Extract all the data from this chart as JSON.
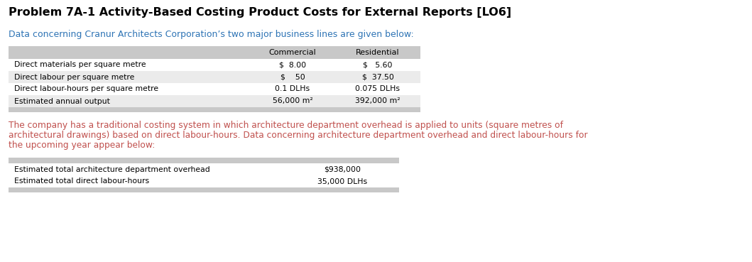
{
  "title": "Problem 7A-1 Activity-Based Costing Product Costs for External Reports [LO6]",
  "subtitle": "Data concerning Cranur Architects Corporation’s two major business lines are given below:",
  "paragraph_lines": [
    "The company has a traditional costing system in which architecture department overhead is applied to units (square metres of",
    "architectural drawings) based on direct labour-hours. Data concerning architecture department overhead and direct labour-hours for",
    "the upcoming year appear below:"
  ],
  "table1_header": [
    "Commercial",
    "Residential"
  ],
  "table1_rows": [
    [
      "Direct materials per square metre",
      "$  8.00",
      "$   5.60"
    ],
    [
      "Direct labour per square metre",
      "$    50",
      "$  37.50"
    ],
    [
      "Direct labour-hours per square metre",
      "0.1 DLHs",
      "0.075 DLHs"
    ],
    [
      "Estimated annual output",
      "56,000 m²",
      "392,000 m²"
    ]
  ],
  "table2_rows": [
    [
      "Estimated total architecture department overhead",
      "$938,000"
    ],
    [
      "Estimated total direct labour-hours",
      "35,000 DLHs"
    ]
  ],
  "title_color": "#000000",
  "subtitle_color": "#2E74B5",
  "paragraph_color": "#C0504D",
  "table_header_bg": "#C8C8C8",
  "table_row_bg_alt": "#EBEBEB",
  "table_row_bg": "#FFFFFF",
  "background_color": "#FFFFFF",
  "monospace_font": "Courier New",
  "title_font": "Arial",
  "body_font": "Arial",
  "fig_width": 10.59,
  "fig_height": 3.69,
  "dpi": 100
}
